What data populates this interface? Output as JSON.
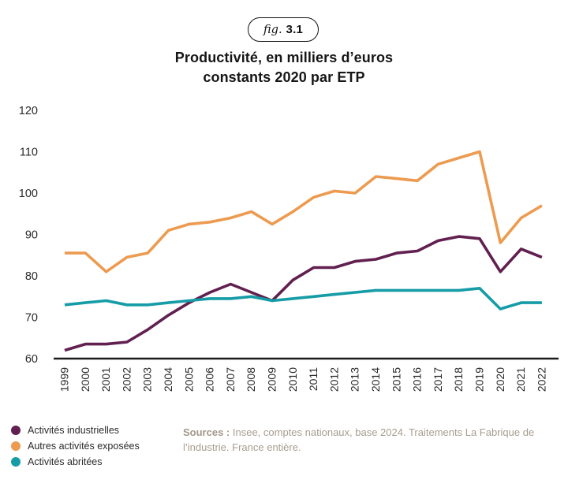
{
  "badge": {
    "prefix": "fig.",
    "number": "3.1"
  },
  "title": {
    "line1": "Productivité, en milliers d’euros",
    "line2": "constants 2020 par ETP"
  },
  "chart_data": {
    "type": "line",
    "title": "Productivité, en milliers d'euros constants 2020 par ETP",
    "x": [
      "1999",
      "2000",
      "2001",
      "2002",
      "2003",
      "2004",
      "2005",
      "2006",
      "2007",
      "2008",
      "2009",
      "2010",
      "2011",
      "2012",
      "2013",
      "2014",
      "2015",
      "2016",
      "2017",
      "2018",
      "2019",
      "2020",
      "2021",
      "2022"
    ],
    "series": [
      {
        "name": "Activités industrielles",
        "color": "#612050",
        "values": [
          62,
          63.5,
          63.5,
          64,
          67,
          70.5,
          73.5,
          76,
          78,
          76,
          74,
          79,
          82,
          82,
          83.5,
          84,
          85.5,
          86,
          88.5,
          89.5,
          89,
          81,
          86.5,
          84.5
        ]
      },
      {
        "name": "Autres activités exposées",
        "color": "#EC9B50",
        "values": [
          85.5,
          85.5,
          81,
          84.5,
          85.5,
          91,
          92.5,
          93,
          94,
          95.5,
          92.5,
          95.5,
          99,
          100.5,
          100,
          104,
          103.5,
          103,
          107,
          108.5,
          110,
          88,
          94,
          97
        ]
      },
      {
        "name": "Activités abritées",
        "color": "#169CA6",
        "values": [
          73,
          73.5,
          74,
          73,
          73,
          73.5,
          74,
          74.5,
          74.5,
          75,
          74,
          74.5,
          75,
          75.5,
          76,
          76.5,
          76.5,
          76.5,
          76.5,
          76.5,
          77,
          72,
          73.5,
          73.5
        ]
      }
    ],
    "ylim": [
      60,
      120
    ],
    "yticks": [
      60,
      70,
      80,
      90,
      100,
      110,
      120
    ],
    "grid": false,
    "legend_position": "bottom-left",
    "axis_color": "#1a1a1a"
  },
  "sources": {
    "label": "Sources :",
    "text": "Insee, comptes nationaux, base 2024. Traitements La Fabrique de l’industrie. France entière."
  }
}
